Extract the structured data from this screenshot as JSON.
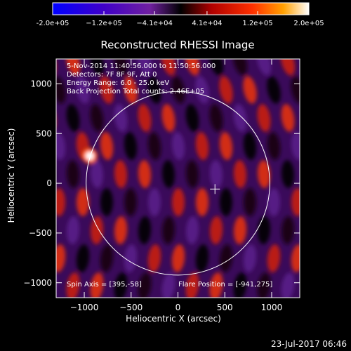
{
  "chart_data": {
    "type": "heatmap",
    "title": "Reconstructed RHESSI Image",
    "xlabel": "Heliocentric X (arcsec)",
    "ylabel": "Heliocentric Y (arcsec)",
    "xlim": [
      -1300,
      1300
    ],
    "ylim": [
      -1150,
      1250
    ],
    "x_ticks": [
      -1000,
      -500,
      0,
      500,
      1000
    ],
    "y_ticks": [
      -1000,
      -500,
      0,
      500,
      1000
    ],
    "colorbar": {
      "range": [
        -200000,
        200000
      ],
      "tick_values": [
        -200000,
        -120000,
        -41000,
        41000,
        120000,
        200000
      ],
      "tick_labels": [
        "-2.0e+05",
        "−1.2e+05",
        "−4.1e+04",
        "4.1e+04",
        "1.2e+05",
        "2.0e+05"
      ],
      "colors": [
        "#0000ff",
        "#4000c8",
        "#7020a0",
        "#000000",
        "#b00000",
        "#ff3000",
        "#ffa000",
        "#ffffff"
      ]
    },
    "info_lines": [
      "5-Nov-2014 11:40:56.000 to 11:50:56.000",
      "Detectors: 7F 8F 9F, Att 0",
      "Energy Range: 6.0 - 25.0 keV",
      "Back Projection    Total counts: 2.46E+05"
    ],
    "spin_axis_text": "Spin Axis = [395,-58]",
    "flare_position_text": "Flare Position = [-941,275]",
    "spin_axis": [
      395,
      -58
    ],
    "flare_position": [
      -941,
      275
    ],
    "solar_disk": {
      "center": [
        0,
        0
      ],
      "radius_arcsec": 980
    },
    "grid": false
  },
  "footer": {
    "timestamp": "23-Jul-2017 06:46"
  }
}
